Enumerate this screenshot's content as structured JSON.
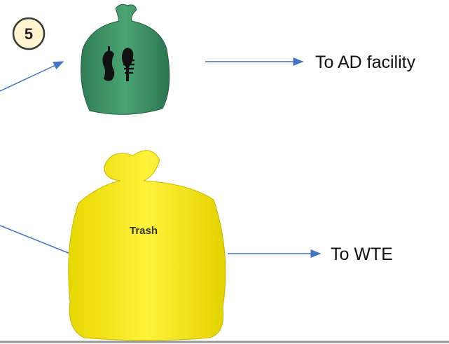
{
  "step_badge": "5",
  "green_bag": {
    "destination": "To AD facility"
  },
  "yellow_bag": {
    "label": "Trash",
    "destination": "To WTE"
  }
}
